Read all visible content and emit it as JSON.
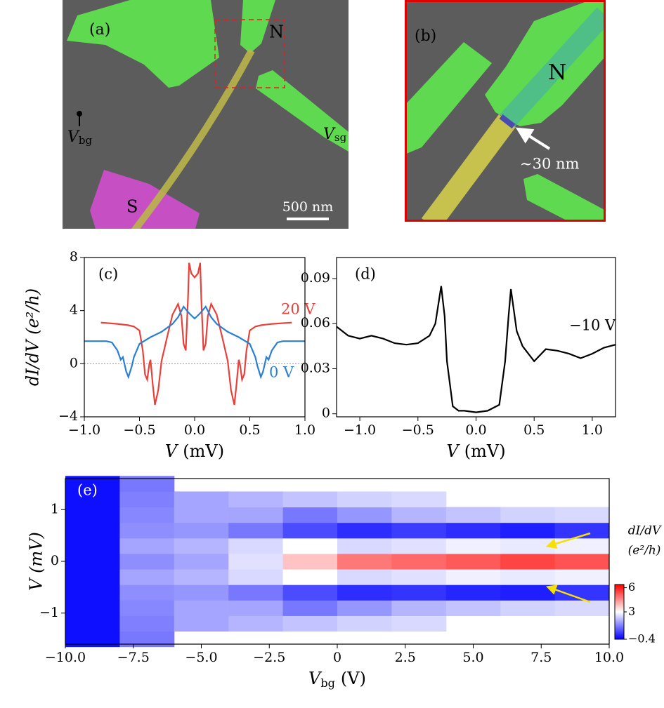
{
  "panels": {
    "a": {
      "label": "(a)",
      "n": "N",
      "s": "S",
      "vbg": "V",
      "vbg_sub": "bg",
      "vsg": "V",
      "vsg_sub": "sg",
      "scale": "500 nm"
    },
    "b": {
      "label": "(b)",
      "n": "N",
      "gap": "∼30 nm"
    }
  },
  "chart_data": [
    {
      "type": "line",
      "label": "(c)",
      "x_label": {
        "symbol": "V",
        "unit": "(mV)"
      },
      "y_label": "dI/dV (e²/h)",
      "xlim": [
        -1,
        1
      ],
      "ylim": [
        -4,
        8
      ],
      "xticks": [
        {
          "value": -1,
          "label": "−1.0"
        },
        {
          "value": -0.5,
          "label": "−0.5"
        },
        {
          "value": 0,
          "label": "0.0"
        },
        {
          "value": 0.5,
          "label": "0.5"
        },
        {
          "value": 1,
          "label": "1.0"
        }
      ],
      "yticks": [
        {
          "value": -4,
          "label": "−4"
        },
        0,
        4,
        8
      ],
      "reference_line": 0,
      "series": [
        {
          "name": "20 V",
          "color": "#e8413c",
          "x": [
            -0.85,
            -0.7,
            -0.6,
            -0.55,
            -0.5,
            -0.47,
            -0.45,
            -0.43,
            -0.41,
            -0.4,
            -0.38,
            -0.36,
            -0.33,
            -0.3,
            -0.25,
            -0.2,
            -0.15,
            -0.12,
            -0.1,
            -0.08,
            -0.06,
            -0.05,
            -0.03,
            0,
            0.03,
            0.05,
            0.06,
            0.08,
            0.1,
            0.12,
            0.15,
            0.2,
            0.25,
            0.3,
            0.33,
            0.36,
            0.38,
            0.4,
            0.41,
            0.43,
            0.45,
            0.47,
            0.5,
            0.55,
            0.6,
            0.7,
            0.88
          ],
          "values": [
            3.1,
            3.0,
            2.9,
            2.8,
            2.5,
            1.0,
            -0.8,
            -1.2,
            0.0,
            0.3,
            -1.5,
            -3.1,
            -2.0,
            0.2,
            2.0,
            3.7,
            4.5,
            3.6,
            1.5,
            1.0,
            5.0,
            7.6,
            6.8,
            6.5,
            6.8,
            7.6,
            5.0,
            1.0,
            1.5,
            3.6,
            4.5,
            3.7,
            2.0,
            0.2,
            -2.0,
            -3.1,
            -1.5,
            0.3,
            0.0,
            -1.2,
            -0.8,
            1.0,
            2.5,
            2.8,
            2.9,
            3.0,
            3.1
          ]
        },
        {
          "name": "0 V",
          "color": "#2a7fd4",
          "x": [
            -1,
            -0.8,
            -0.75,
            -0.7,
            -0.67,
            -0.65,
            -0.62,
            -0.6,
            -0.57,
            -0.55,
            -0.5,
            -0.4,
            -0.3,
            -0.2,
            -0.15,
            -0.1,
            -0.05,
            0,
            0.05,
            0.1,
            0.15,
            0.2,
            0.3,
            0.4,
            0.5,
            0.55,
            0.57,
            0.6,
            0.62,
            0.65,
            0.67,
            0.7,
            0.75,
            0.8,
            1
          ],
          "values": [
            1.7,
            1.7,
            1.6,
            1.0,
            0.3,
            0.5,
            -0.6,
            -1.0,
            -0.2,
            0.5,
            1.5,
            2.0,
            2.4,
            3.0,
            3.5,
            4.3,
            3.8,
            3.4,
            3.8,
            4.3,
            3.5,
            3.0,
            2.4,
            2.0,
            1.5,
            0.5,
            -0.2,
            -1.0,
            -0.6,
            0.5,
            0.3,
            1.0,
            1.6,
            1.7,
            1.7
          ]
        }
      ]
    },
    {
      "type": "line",
      "label": "(d)",
      "x_label": {
        "symbol": "V",
        "unit": "(mV)"
      },
      "xlim": [
        -1.2,
        1.2
      ],
      "ylim": [
        -0.002,
        0.104
      ],
      "xticks": [
        {
          "value": -1,
          "label": "−1.0"
        },
        {
          "value": -0.5,
          "label": "−0.5"
        },
        {
          "value": 0,
          "label": "0.0"
        },
        {
          "value": 0.5,
          "label": "0.5"
        },
        {
          "value": 1,
          "label": "1.0"
        }
      ],
      "yticks": [
        0,
        {
          "value": 0.03,
          "label": "0.03"
        },
        {
          "value": 0.06,
          "label": "0.06"
        },
        {
          "value": 0.09,
          "label": "0.09"
        }
      ],
      "series": [
        {
          "name": "−10 V",
          "color": "#000000",
          "x": [
            -1.2,
            -1.1,
            -1.0,
            -0.9,
            -0.8,
            -0.7,
            -0.6,
            -0.5,
            -0.4,
            -0.35,
            -0.3,
            -0.27,
            -0.25,
            -0.2,
            -0.15,
            -0.1,
            0,
            0.1,
            0.2,
            0.25,
            0.28,
            0.3,
            0.35,
            0.4,
            0.5,
            0.6,
            0.7,
            0.8,
            0.9,
            1.0,
            1.1,
            1.2
          ],
          "values": [
            0.058,
            0.052,
            0.05,
            0.052,
            0.05,
            0.047,
            0.046,
            0.047,
            0.052,
            0.06,
            0.085,
            0.065,
            0.035,
            0.005,
            0.002,
            0.002,
            0.001,
            0.002,
            0.006,
            0.035,
            0.065,
            0.083,
            0.055,
            0.045,
            0.035,
            0.043,
            0.042,
            0.04,
            0.037,
            0.04,
            0.044,
            0.046
          ]
        }
      ]
    },
    {
      "type": "heatmap",
      "label": "(e)",
      "x_label": {
        "symbol": "V",
        "sub": "bg",
        "unit": "(V)"
      },
      "y_label": "V (mV)",
      "colorbar_label": [
        "dI/dV",
        "(e²/h)"
      ],
      "xlim": [
        -10,
        10
      ],
      "ylim": [
        -1.6,
        1.6
      ],
      "xticks": [
        {
          "value": -10,
          "label": "−10.0"
        },
        {
          "value": -7.5,
          "label": "−7.5"
        },
        {
          "value": -5,
          "label": "−5.0"
        },
        {
          "value": -2.5,
          "label": "−2.5"
        },
        0,
        2.5,
        {
          "value": 5,
          "label": "5.0"
        },
        {
          "value": 7.5,
          "label": "7.5"
        },
        {
          "value": 10,
          "label": "10.0"
        }
      ],
      "yticks": [
        {
          "value": -1,
          "label": "−1"
        },
        0,
        1
      ],
      "clim": [
        -0.4,
        6.4
      ],
      "cticks": [
        {
          "value": -0.4,
          "label": "−0.4"
        },
        3,
        6
      ],
      "cmap": [
        "#0000ff",
        "#ffffff",
        "#ff0000"
      ],
      "x": [
        -9,
        -7,
        -5,
        -3,
        -1,
        1,
        3,
        5,
        7,
        9
      ],
      "y": [
        -1.5,
        -1.2,
        -0.9,
        -0.6,
        -0.3,
        0,
        0.3,
        0.6,
        0.9,
        1.2,
        1.5
      ],
      "z": [
        [
          -0.2,
          1.2,
          null,
          null,
          null,
          null,
          null,
          null,
          null,
          null
        ],
        [
          -0.2,
          1.3,
          1.8,
          2.0,
          2.2,
          2.4,
          2.5,
          null,
          null,
          null
        ],
        [
          -0.2,
          1.4,
          1.8,
          1.8,
          1.2,
          1.6,
          2.0,
          2.2,
          2.4,
          2.5
        ],
        [
          -0.2,
          1.5,
          1.6,
          1.2,
          0.6,
          0.2,
          0.3,
          0.1,
          0.0,
          0.3
        ],
        [
          -0.2,
          1.8,
          2.0,
          2.5,
          3.0,
          2.5,
          2.6,
          2.8,
          2.7,
          2.8
        ],
        [
          -0.2,
          1.5,
          1.8,
          2.6,
          3.8,
          4.8,
          5.0,
          5.2,
          5.5,
          5.3
        ],
        [
          -0.2,
          1.8,
          2.0,
          2.5,
          3.0,
          2.5,
          2.6,
          2.8,
          2.7,
          2.8
        ],
        [
          -0.2,
          1.5,
          1.6,
          1.2,
          0.6,
          0.2,
          0.4,
          0.2,
          0.0,
          0.3
        ],
        [
          -0.2,
          1.4,
          1.8,
          1.8,
          1.2,
          1.6,
          2.0,
          2.2,
          2.4,
          2.5
        ],
        [
          -0.2,
          1.3,
          1.8,
          2.0,
          2.2,
          2.4,
          2.5,
          null,
          null,
          null
        ],
        [
          -0.2,
          1.2,
          null,
          null,
          null,
          null,
          null,
          null,
          null,
          null
        ]
      ]
    }
  ]
}
